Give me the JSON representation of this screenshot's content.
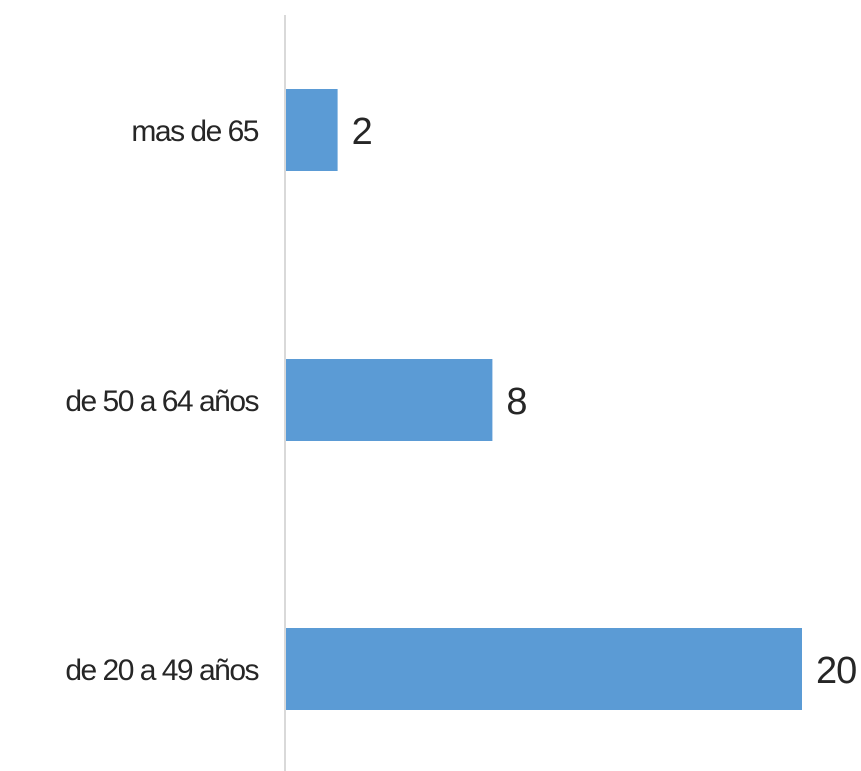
{
  "chart_data": {
    "type": "bar",
    "orientation": "horizontal",
    "categories": [
      "mas de 65",
      "de 50 a 64 años",
      "de 20 a 49 años"
    ],
    "values": [
      2,
      8,
      20
    ],
    "data_labels": [
      "2",
      "8",
      "20"
    ],
    "title": "",
    "xlabel": "",
    "ylabel": "",
    "xlim": [
      0,
      20
    ],
    "grid": false,
    "legend": "none",
    "bar_color": "#5B9BD5",
    "axis_color": "#D9D9D9"
  }
}
